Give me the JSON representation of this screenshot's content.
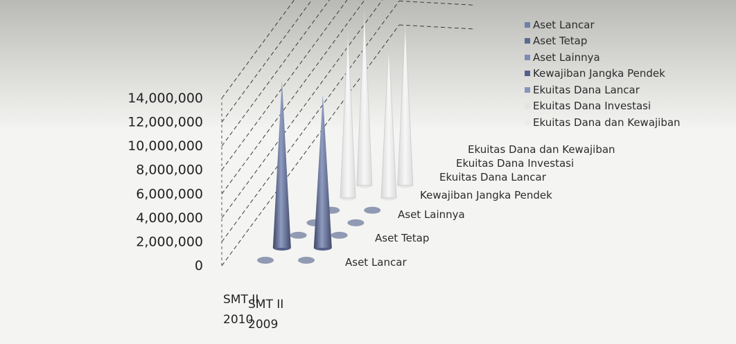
{
  "chart_data": {
    "type": "bar",
    "subtype": "3d-cone",
    "categories": [
      "SMT II 2010",
      "SMT II 2009"
    ],
    "category_lines": [
      [
        "SMT II",
        "2010"
      ],
      [
        "SMT II",
        "2009"
      ]
    ],
    "series": [
      {
        "name": "Aset Lancar",
        "values": [
          300000,
          300000
        ]
      },
      {
        "name": "Aset Tetap",
        "values": [
          14000000,
          12800000
        ]
      },
      {
        "name": "Aset Lainnya",
        "values": [
          250000,
          250000
        ]
      },
      {
        "name": "Kewajiban Jangka Pendek",
        "values": [
          200000,
          200000
        ]
      },
      {
        "name": "Ekuitas Dana Lancar",
        "values": [
          150000,
          150000
        ]
      },
      {
        "name": "Ekuitas Dana Investasi",
        "values": [
          14000000,
          12800000
        ]
      },
      {
        "name": "Ekuitas Dana dan Kewajiban",
        "values": [
          14500000,
          13500000
        ]
      }
    ],
    "y_ticks": [
      "0",
      "2,000,000",
      "4,000,000",
      "6,000,000",
      "8,000,000",
      "10,000,000",
      "12,000,000",
      "14,000,000"
    ],
    "ylim": [
      0,
      14000000
    ],
    "ystep": 2000000,
    "grid": true,
    "legend_position": "top-right",
    "colors": [
      "#6e7fa8",
      "#5c6a92",
      "#7b8bb3",
      "#56608a",
      "#8895b8",
      "#e3e3e3",
      "#ececec"
    ],
    "base_fill": "#7f8aa8"
  }
}
